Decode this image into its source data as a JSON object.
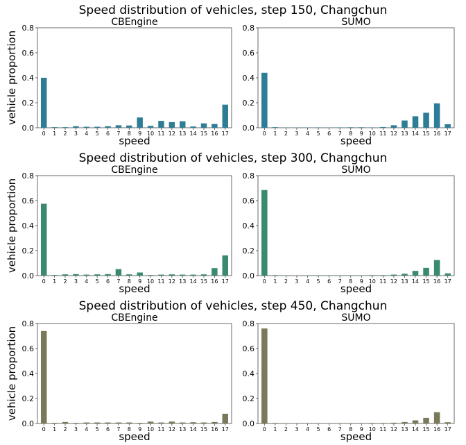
{
  "rows": [
    {
      "title": "Speed distribution of vehicles, step 150, Changchun",
      "color": "#2e7d96"
    },
    {
      "title": "Speed distribution of vehicles, step 300, Changchun",
      "color": "#3a8a6e"
    },
    {
      "title": "Speed distribution of vehicles, step 450, Changchun",
      "color": "#7a7a5a"
    }
  ],
  "axis": {
    "ylabel": "vehicle proportion",
    "xlabel": "speed",
    "yticks": [
      "0.0",
      "0.2",
      "0.4",
      "0.6",
      "0.8"
    ],
    "xticks": [
      "0",
      "1",
      "2",
      "3",
      "4",
      "5",
      "6",
      "7",
      "8",
      "9",
      "10",
      "11",
      "12",
      "13",
      "14",
      "15",
      "16",
      "17"
    ]
  },
  "chart_data": [
    {
      "type": "bar",
      "row": 0,
      "title": "CBEngine",
      "xlabel": "speed",
      "ylabel": "vehicle proportion",
      "ylim": [
        0,
        0.8
      ],
      "categories": [
        "0",
        "1",
        "2",
        "3",
        "4",
        "5",
        "6",
        "7",
        "8",
        "9",
        "10",
        "11",
        "12",
        "13",
        "14",
        "15",
        "16",
        "17"
      ],
      "values": [
        0.4,
        0.005,
        0.005,
        0.012,
        0.008,
        0.008,
        0.012,
        0.02,
        0.018,
        0.082,
        0.015,
        0.055,
        0.045,
        0.052,
        0.01,
        0.035,
        0.03,
        0.185
      ]
    },
    {
      "type": "bar",
      "row": 0,
      "title": "SUMO",
      "xlabel": "speed",
      "ylabel": "",
      "ylim": [
        0,
        0.8
      ],
      "categories": [
        "0",
        "1",
        "2",
        "3",
        "4",
        "5",
        "6",
        "7",
        "8",
        "9",
        "10",
        "11",
        "12",
        "13",
        "14",
        "15",
        "16",
        "17"
      ],
      "values": [
        0.44,
        0.005,
        0.002,
        0.002,
        0.002,
        0.003,
        0.002,
        0.003,
        0.004,
        0.004,
        0.003,
        0.006,
        0.02,
        0.058,
        0.092,
        0.12,
        0.195,
        0.028
      ]
    },
    {
      "type": "bar",
      "row": 1,
      "title": "CBEngine",
      "xlabel": "speed",
      "ylabel": "vehicle proportion",
      "ylim": [
        0,
        0.8
      ],
      "categories": [
        "0",
        "1",
        "2",
        "3",
        "4",
        "5",
        "6",
        "7",
        "8",
        "9",
        "10",
        "11",
        "12",
        "13",
        "14",
        "15",
        "16",
        "17"
      ],
      "values": [
        0.575,
        0.005,
        0.01,
        0.012,
        0.008,
        0.01,
        0.012,
        0.052,
        0.01,
        0.025,
        0.005,
        0.008,
        0.01,
        0.008,
        0.008,
        0.01,
        0.06,
        0.162
      ]
    },
    {
      "type": "bar",
      "row": 1,
      "title": "SUMO",
      "xlabel": "speed",
      "ylabel": "",
      "ylim": [
        0,
        0.8
      ],
      "categories": [
        "0",
        "1",
        "2",
        "3",
        "4",
        "5",
        "6",
        "7",
        "8",
        "9",
        "10",
        "11",
        "12",
        "13",
        "14",
        "15",
        "16",
        "17"
      ],
      "values": [
        0.685,
        0.004,
        0.002,
        0.002,
        0.002,
        0.003,
        0.003,
        0.003,
        0.003,
        0.003,
        0.004,
        0.004,
        0.008,
        0.015,
        0.038,
        0.062,
        0.125,
        0.018
      ]
    },
    {
      "type": "bar",
      "row": 2,
      "title": "CBEngine",
      "xlabel": "speed",
      "ylabel": "vehicle proportion",
      "ylim": [
        0,
        0.8
      ],
      "categories": [
        "0",
        "1",
        "2",
        "3",
        "4",
        "5",
        "6",
        "7",
        "8",
        "9",
        "10",
        "11",
        "12",
        "13",
        "14",
        "15",
        "16",
        "17"
      ],
      "values": [
        0.74,
        0.005,
        0.012,
        0.005,
        0.008,
        0.008,
        0.008,
        0.008,
        0.008,
        0.005,
        0.015,
        0.008,
        0.015,
        0.008,
        0.01,
        0.008,
        0.012,
        0.078
      ]
    },
    {
      "type": "bar",
      "row": 2,
      "title": "SUMO",
      "xlabel": "speed",
      "ylabel": "",
      "ylim": [
        0,
        0.8
      ],
      "categories": [
        "0",
        "1",
        "2",
        "3",
        "4",
        "5",
        "6",
        "7",
        "8",
        "9",
        "10",
        "11",
        "12",
        "13",
        "14",
        "15",
        "16",
        "17"
      ],
      "values": [
        0.76,
        0.004,
        0.002,
        0.002,
        0.002,
        0.002,
        0.002,
        0.003,
        0.003,
        0.003,
        0.004,
        0.004,
        0.006,
        0.012,
        0.025,
        0.045,
        0.09,
        0.01
      ]
    }
  ]
}
